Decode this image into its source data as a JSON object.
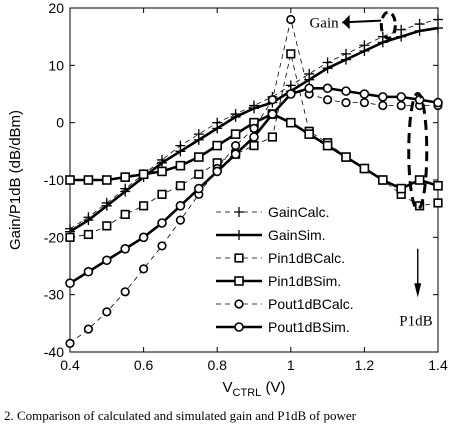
{
  "chart_data": {
    "type": "line",
    "xlabel": "V_CTRL (V)",
    "xlabel_main": "V",
    "xlabel_sub": "CTRL",
    "xlabel_unit": "(V)",
    "ylabel": "Gain/P1dB (dB/dBm)",
    "xlim": [
      0.4,
      1.4
    ],
    "ylim": [
      -40,
      20
    ],
    "xticks": [
      0.4,
      0.6,
      0.8,
      1.0,
      1.2,
      1.4
    ],
    "xtick_labels": [
      "0.4",
      "0.6",
      "0.8",
      "1",
      "1.2",
      "1.4"
    ],
    "yticks": [
      -40,
      -30,
      -20,
      -10,
      0,
      10,
      20
    ],
    "ytick_labels": [
      "-40",
      "-30",
      "-20",
      "-10",
      "0",
      "10",
      "20"
    ],
    "grid": false,
    "legend_position": "bottom-center",
    "series": [
      {
        "name": "GainCalc.",
        "style": "thin-dashed",
        "marker": "plus",
        "x": [
          0.4,
          0.45,
          0.5,
          0.55,
          0.6,
          0.65,
          0.7,
          0.75,
          0.8,
          0.85,
          0.9,
          0.95,
          1.0,
          1.05,
          1.1,
          1.15,
          1.2,
          1.25,
          1.3,
          1.35,
          1.4
        ],
        "y": [
          -18.5,
          -16.5,
          -14,
          -11.5,
          -9,
          -6.5,
          -4,
          -2,
          0,
          1.5,
          3,
          4.5,
          6.5,
          8.5,
          10.5,
          12,
          13.5,
          15,
          16.2,
          17.2,
          18
        ]
      },
      {
        "name": "GainSim.",
        "style": "thick-solid",
        "marker": "plus",
        "x": [
          0.4,
          0.45,
          0.5,
          0.55,
          0.6,
          0.65,
          0.7,
          0.75,
          0.8,
          0.85,
          0.9,
          0.95,
          1.0,
          1.05,
          1.1,
          1.15,
          1.2,
          1.25,
          1.3,
          1.35,
          1.4
        ],
        "y": [
          -19,
          -17,
          -14.5,
          -12,
          -9.5,
          -7,
          -5,
          -3,
          -1,
          1,
          2.5,
          3.5,
          5.5,
          7.5,
          9.5,
          11,
          12.5,
          14,
          15,
          16,
          16.5
        ]
      },
      {
        "name": "Pin1dBCalc.",
        "style": "thin-dashed",
        "marker": "square",
        "x": [
          0.4,
          0.45,
          0.5,
          0.55,
          0.6,
          0.65,
          0.7,
          0.75,
          0.8,
          0.85,
          0.9,
          0.95,
          1.0,
          1.05,
          1.1,
          1.15,
          1.2,
          1.25,
          1.3,
          1.35,
          1.4
        ],
        "y": [
          -20,
          -19.5,
          -18,
          -16,
          -14.5,
          -12.5,
          -11,
          -9,
          -7,
          -5.5,
          -4,
          -2.5,
          12,
          -1.5,
          -3.5,
          -6,
          -8,
          -10,
          -12.5,
          -14.5,
          -14
        ]
      },
      {
        "name": "Pin1dBSim.",
        "style": "thick-solid",
        "marker": "square",
        "x": [
          0.4,
          0.45,
          0.5,
          0.55,
          0.6,
          0.65,
          0.7,
          0.75,
          0.8,
          0.85,
          0.9,
          0.95,
          1.0,
          1.05,
          1.1,
          1.15,
          1.2,
          1.25,
          1.3,
          1.35,
          1.4
        ],
        "y": [
          -10,
          -10,
          -10,
          -9.5,
          -9,
          -8.5,
          -7.5,
          -6,
          -4,
          -2,
          0,
          1.5,
          0,
          -2,
          -4,
          -6,
          -8,
          -10,
          -11.5,
          -10,
          -11
        ]
      },
      {
        "name": "Pout1dBCalc.",
        "style": "thin-dashed",
        "marker": "circle",
        "x": [
          0.4,
          0.45,
          0.5,
          0.55,
          0.6,
          0.65,
          0.7,
          0.75,
          0.8,
          0.85,
          0.9,
          0.95,
          1.0,
          1.05,
          1.1,
          1.15,
          1.2,
          1.25,
          1.3,
          1.35,
          1.4
        ],
        "y": [
          -38.5,
          -36,
          -33,
          -29.5,
          -25.5,
          -21.5,
          -17,
          -12.5,
          -8,
          -4,
          -1,
          4,
          18,
          5,
          4,
          3.5,
          3.5,
          3,
          3,
          3,
          3
        ]
      },
      {
        "name": "Pout1dBSim.",
        "style": "thick-solid",
        "marker": "circle",
        "x": [
          0.4,
          0.45,
          0.5,
          0.55,
          0.6,
          0.65,
          0.7,
          0.75,
          0.8,
          0.85,
          0.9,
          0.95,
          1.0,
          1.05,
          1.1,
          1.15,
          1.2,
          1.25,
          1.3,
          1.35,
          1.4
        ],
        "y": [
          -28,
          -26,
          -24,
          -22,
          -20,
          -17.5,
          -14.5,
          -11.5,
          -8.5,
          -5.5,
          -2.5,
          1.5,
          5,
          6,
          6,
          5.5,
          5,
          4.5,
          4.5,
          4,
          3.5
        ]
      }
    ],
    "annotations": [
      {
        "text": "Gain",
        "x": 1.13,
        "y": 17.5
      },
      {
        "text": "P1dB",
        "x": 1.34,
        "y": -34.5
      }
    ]
  },
  "caption": "2.   Comparison of calculated and simulated gain and P1dB of power"
}
